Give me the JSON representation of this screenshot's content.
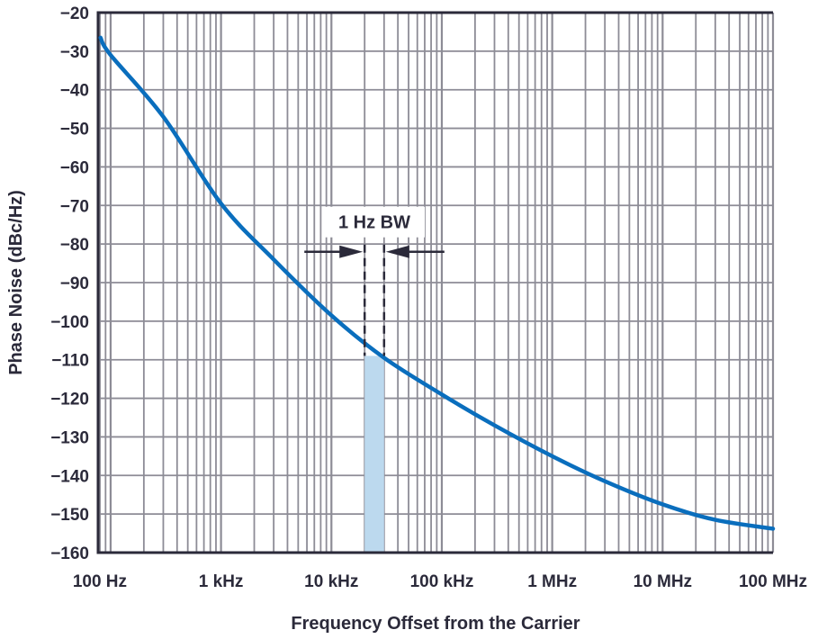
{
  "chart_data": {
    "type": "line",
    "title": "",
    "xlabel": "Frequency Offset from the Carrier",
    "ylabel": "Phase Noise (dBc/Hz)",
    "x_scale": "log",
    "xlim": [
      77,
      100000000
    ],
    "ylim": [
      -160,
      -20
    ],
    "grid": true,
    "x_ticks": [
      {
        "value": 100,
        "label": "100 Hz"
      },
      {
        "value": 1000,
        "label": "1 kHz"
      },
      {
        "value": 10000,
        "label": "10 kHz"
      },
      {
        "value": 100000,
        "label": "100 kHz"
      },
      {
        "value": 1000000,
        "label": "1 MHz"
      },
      {
        "value": 10000000,
        "label": "10 MHz"
      },
      {
        "value": 100000000,
        "label": "100 MHz"
      }
    ],
    "y_ticks": [
      -20,
      -30,
      -40,
      -50,
      -60,
      -70,
      -80,
      -90,
      -100,
      -110,
      -120,
      -130,
      -140,
      -150,
      -160
    ],
    "series": [
      {
        "color": "#0a6ebd",
        "points": [
          [
            81,
            -26.5
          ],
          [
            100,
            -31
          ],
          [
            300,
            -47
          ],
          [
            1000,
            -69.5
          ],
          [
            3000,
            -84
          ],
          [
            10000,
            -98.5
          ],
          [
            30000,
            -109.5
          ],
          [
            100000,
            -119
          ],
          [
            300000,
            -127
          ],
          [
            1000000,
            -135
          ],
          [
            3000000,
            -141.5
          ],
          [
            10000000,
            -147.5
          ],
          [
            30000000,
            -151.5
          ],
          [
            100000000,
            -153.8
          ]
        ]
      }
    ],
    "annotations": {
      "bandwidth_label": "1 Hz BW",
      "band_start": 20000,
      "band_end": 30000,
      "band_top": -109,
      "band_color": "#bcd9ee",
      "arrow_level": -82
    }
  }
}
